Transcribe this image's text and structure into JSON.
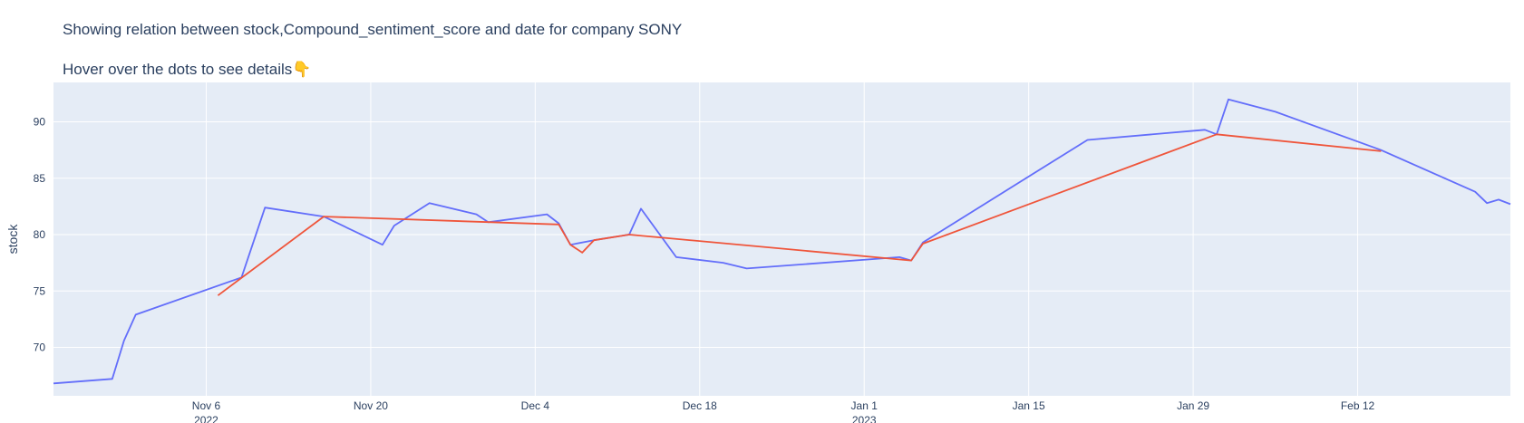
{
  "chart_data": {
    "type": "line",
    "title": "Showing relation between stock,Compound_sentiment_score and date for company SONY",
    "subtitle": "Hover over the dots to see details👇",
    "xlabel": "",
    "ylabel": "stock",
    "xlim": [
      "2022-10-24",
      "2023-02-25"
    ],
    "ylim": [
      65.7,
      93.5
    ],
    "yticks": [
      70,
      75,
      80,
      85,
      90
    ],
    "xticks": [
      {
        "date": "2022-11-06",
        "label": "Nov 6",
        "sublabel": "2022"
      },
      {
        "date": "2022-11-20",
        "label": "Nov 20",
        "sublabel": ""
      },
      {
        "date": "2022-12-04",
        "label": "Dec 4",
        "sublabel": ""
      },
      {
        "date": "2022-12-18",
        "label": "Dec 18",
        "sublabel": ""
      },
      {
        "date": "2023-01-01",
        "label": "Jan 1",
        "sublabel": "2023"
      },
      {
        "date": "2023-01-15",
        "label": "Jan 15",
        "sublabel": ""
      },
      {
        "date": "2023-01-29",
        "label": "Jan 29",
        "sublabel": ""
      },
      {
        "date": "2023-02-12",
        "label": "Feb 12",
        "sublabel": ""
      }
    ],
    "grid": true,
    "colors": {
      "plot_bg": "#e5ecf6",
      "grid": "#ffffff",
      "text": "#2a3f5f"
    },
    "series": [
      {
        "color": "#636efa",
        "points": [
          [
            "2022-10-24",
            66.8
          ],
          [
            "2022-10-29",
            67.2
          ],
          [
            "2022-10-30",
            70.6
          ],
          [
            "2022-10-31",
            72.9
          ],
          [
            "2022-11-09",
            76.2
          ],
          [
            "2022-11-11",
            82.4
          ],
          [
            "2022-11-16",
            81.6
          ],
          [
            "2022-11-21",
            79.1
          ],
          [
            "2022-11-22",
            80.8
          ],
          [
            "2022-11-25",
            82.8
          ],
          [
            "2022-11-29",
            81.8
          ],
          [
            "2022-11-30",
            81.1
          ],
          [
            "2022-12-05",
            81.8
          ],
          [
            "2022-12-06",
            81.0
          ],
          [
            "2022-12-07",
            79.1
          ],
          [
            "2022-12-09",
            79.5
          ],
          [
            "2022-12-12",
            80.0
          ],
          [
            "2022-12-13",
            82.3
          ],
          [
            "2022-12-16",
            78.0
          ],
          [
            "2022-12-20",
            77.5
          ],
          [
            "2022-12-22",
            77.0
          ],
          [
            "2023-01-04",
            78.0
          ],
          [
            "2023-01-05",
            77.7
          ],
          [
            "2023-01-06",
            79.3
          ],
          [
            "2023-01-20",
            88.4
          ],
          [
            "2023-01-30",
            89.3
          ],
          [
            "2023-01-31",
            88.9
          ],
          [
            "2023-02-01",
            92.0
          ],
          [
            "2023-02-05",
            90.9
          ],
          [
            "2023-02-14",
            87.5
          ],
          [
            "2023-02-22",
            83.8
          ],
          [
            "2023-02-23",
            82.8
          ],
          [
            "2023-02-24",
            83.1
          ],
          [
            "2023-02-25",
            82.7
          ]
        ]
      },
      {
        "color": "#ef553b",
        "points": [
          [
            "2022-11-07",
            74.6
          ],
          [
            "2022-11-16",
            81.6
          ],
          [
            "2022-12-06",
            80.9
          ],
          [
            "2022-12-07",
            79.1
          ],
          [
            "2022-12-08",
            78.4
          ],
          [
            "2022-12-09",
            79.5
          ],
          [
            "2022-12-12",
            80.0
          ],
          [
            "2023-01-05",
            77.7
          ],
          [
            "2023-01-06",
            79.2
          ],
          [
            "2023-01-31",
            88.9
          ],
          [
            "2023-02-14",
            87.4
          ]
        ]
      }
    ]
  }
}
